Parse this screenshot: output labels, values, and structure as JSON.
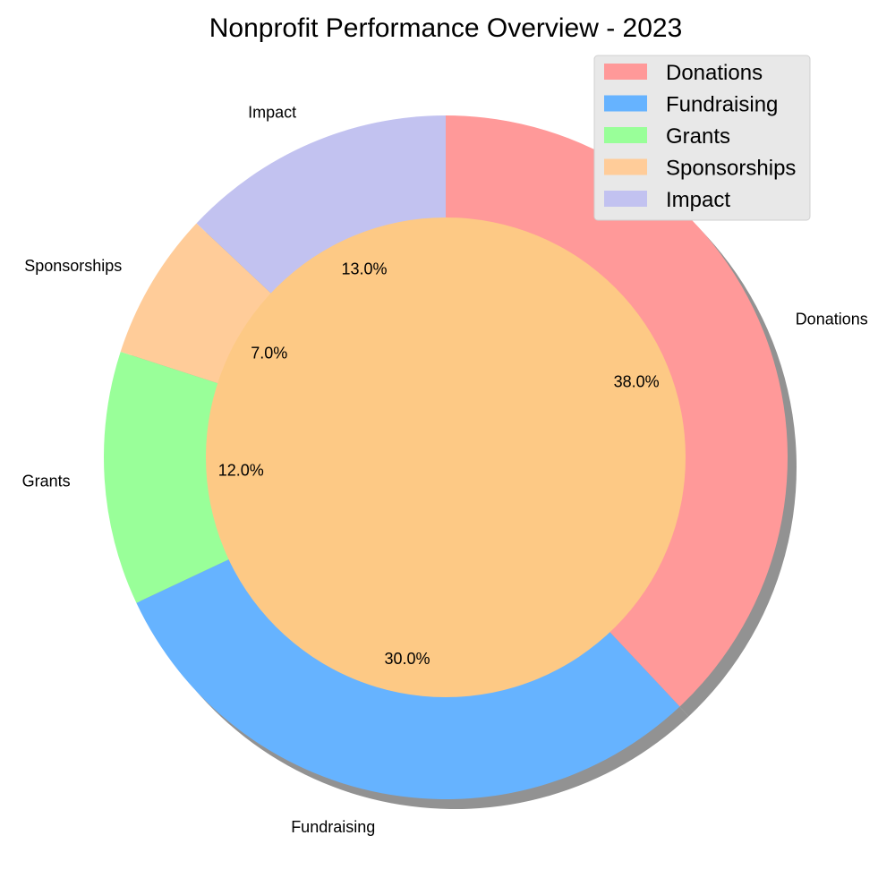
{
  "chart_data": {
    "type": "pie",
    "style": "donut",
    "title": "Nonprofit Performance Overview - 2023",
    "categories": [
      "Donations",
      "Fundraising",
      "Grants",
      "Sponsorships",
      "Impact"
    ],
    "values": [
      38.0,
      30.0,
      12.0,
      7.0,
      13.0
    ],
    "percent_labels": [
      "38.0%",
      "30.0%",
      "12.0%",
      "7.0%",
      "13.0%"
    ],
    "colors": [
      "#ff9999",
      "#66b3ff",
      "#99ff99",
      "#ffcc99",
      "#c2c2f0"
    ],
    "center_color": "#fdc985",
    "shadow": true,
    "start_angle": 90,
    "direction": "clockwise",
    "legend": {
      "placement": "top-right",
      "entries": [
        "Donations",
        "Fundraising",
        "Grants",
        "Sponsorships",
        "Impact"
      ]
    }
  }
}
